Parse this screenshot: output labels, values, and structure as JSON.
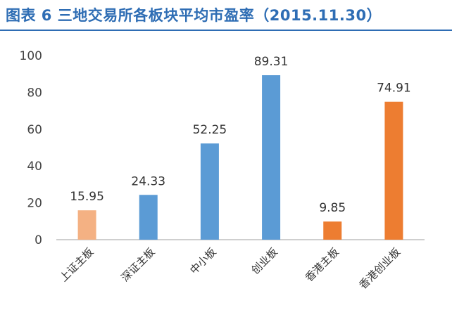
{
  "title": "图表 6 三地交易所各板块平均市盈率（2015.11.30）",
  "chart_data": {
    "type": "bar",
    "title": "图表 6 三地交易所各板块平均市盈率（2015.11.30）",
    "categories": [
      "上证主板",
      "深证主板",
      "中小板",
      "创业板",
      "香港主板",
      "香港创业板"
    ],
    "values": [
      15.95,
      24.33,
      52.25,
      89.31,
      9.85,
      74.91
    ],
    "value_labels": [
      "15.95",
      "24.33",
      "52.25",
      "89.31",
      "9.85",
      "74.91"
    ],
    "bar_colors": [
      "#f4b183",
      "#5b9bd5",
      "#5b9bd5",
      "#5b9bd5",
      "#ed7d31",
      "#ed7d31"
    ],
    "ylim": [
      0,
      100
    ],
    "yticks": [
      0,
      20,
      40,
      60,
      80,
      100
    ],
    "grid": false,
    "legend": "none"
  },
  "colors": {
    "title": "#2e6db4",
    "axis": "#bfbfbf"
  }
}
